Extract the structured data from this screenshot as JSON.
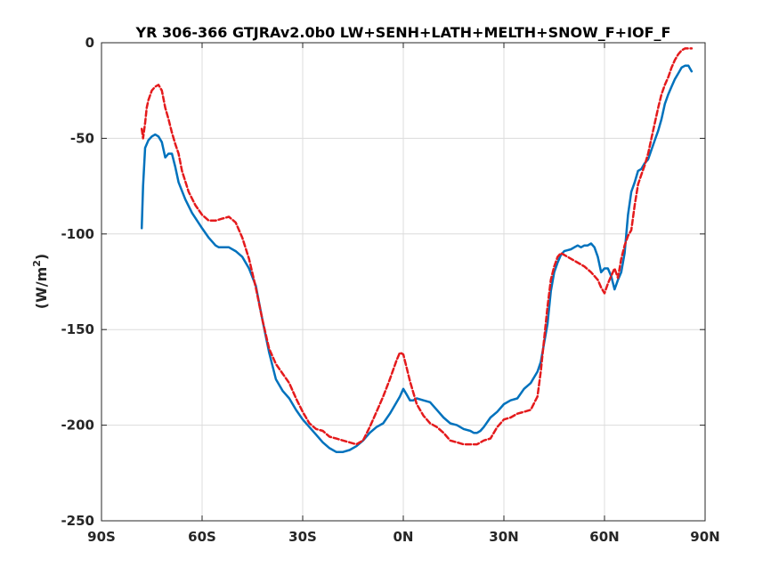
{
  "chart_data": {
    "type": "line",
    "title": "YR 306-366 GTJRAv2.0b0 LW+SENH+LATH+MELTH+SNOW_F+IOF_F",
    "xlabel": "",
    "ylabel": "(W/m",
    "ylabel_superscript": "2",
    "ylabel_close": ")",
    "xlim": [
      -90,
      90
    ],
    "ylim": [
      -250,
      0
    ],
    "x_ticks": [
      -90,
      -60,
      -30,
      0,
      30,
      60,
      90
    ],
    "x_tick_labels": [
      "90S",
      "60S",
      "30S",
      "0N",
      "30N",
      "60N",
      "90N"
    ],
    "y_ticks": [
      0,
      -50,
      -100,
      -150,
      -200,
      -250
    ],
    "y_tick_labels": [
      "0",
      "-50",
      "-100",
      "-150",
      "-200",
      "-250"
    ],
    "grid": true,
    "legend": "none",
    "series": [
      {
        "color": "#0072bd",
        "style": "solid",
        "x": [
          -78,
          -77.6,
          -77,
          -76,
          -75,
          -74,
          -73,
          -72,
          -71,
          -70,
          -69,
          -68,
          -67,
          -65,
          -63,
          -60,
          -58,
          -56,
          -55,
          -52,
          -50,
          -48,
          -46,
          -44,
          -42,
          -40,
          -38,
          -36,
          -34,
          -32,
          -30,
          -28,
          -26,
          -24,
          -22,
          -20,
          -18,
          -16,
          -14,
          -12,
          -10,
          -8,
          -6,
          -4,
          -2,
          -1,
          0,
          1,
          2,
          3,
          4,
          6,
          8,
          10,
          12,
          14,
          16,
          18,
          20,
          21,
          22,
          23,
          24,
          26,
          28,
          30,
          32,
          34,
          36,
          38,
          39,
          40,
          41,
          42,
          43,
          44,
          45,
          46,
          47,
          48,
          50,
          51,
          52,
          53,
          54,
          55,
          56,
          57,
          58,
          59,
          60,
          61,
          62,
          63,
          64,
          65,
          66,
          67,
          68,
          69,
          70,
          71,
          72,
          73,
          74,
          75,
          76,
          77,
          78,
          79,
          80,
          81,
          82,
          83,
          84,
          85,
          86
        ],
        "values": [
          -97,
          -75,
          -55,
          -51,
          -49,
          -48,
          -49,
          -52,
          -60,
          -58,
          -58,
          -65,
          -73,
          -82,
          -89,
          -97,
          -102,
          -106,
          -107,
          -107,
          -109,
          -112,
          -118,
          -127,
          -145,
          -162,
          -176,
          -182,
          -186,
          -192,
          -197,
          -201,
          -205,
          -209,
          -212,
          -214,
          -214,
          -213,
          -211,
          -208,
          -204,
          -201,
          -199,
          -194,
          -188,
          -185,
          -181,
          -184,
          -187,
          -187,
          -186,
          -187,
          -188,
          -192,
          -196,
          -199,
          -200,
          -202,
          -203,
          -204,
          -204,
          -203,
          -201,
          -196,
          -193,
          -189,
          -187,
          -186,
          -181,
          -178,
          -175,
          -172,
          -167,
          -157,
          -147,
          -130,
          -120,
          -115,
          -111,
          -109,
          -108,
          -107,
          -106,
          -107,
          -106,
          -106,
          -105,
          -107,
          -112,
          -120,
          -118,
          -118,
          -122,
          -129,
          -124,
          -120,
          -110,
          -90,
          -78,
          -73,
          -67,
          -66,
          -63,
          -61,
          -56,
          -51,
          -46,
          -40,
          -32,
          -27,
          -23,
          -19,
          -16,
          -13,
          -12,
          -12,
          -15
        ]
      },
      {
        "color": "#e41a1c",
        "style": "dashed",
        "x": [
          -78,
          -77.6,
          -77,
          -76.5,
          -76,
          -75,
          -74,
          -73,
          -72,
          -71,
          -70,
          -69,
          -68,
          -67,
          -66,
          -64,
          -62,
          -60,
          -58,
          -56,
          -54,
          -52,
          -50,
          -48,
          -46,
          -44,
          -42,
          -40,
          -38,
          -36,
          -34,
          -32,
          -30,
          -28,
          -26,
          -24,
          -22,
          -20,
          -18,
          -16,
          -14,
          -12,
          -10,
          -8,
          -6,
          -4,
          -3,
          -2,
          -1,
          0,
          1,
          2,
          3,
          4,
          6,
          8,
          10,
          12,
          14,
          16,
          18,
          20,
          22,
          24,
          26,
          28,
          30,
          32,
          34,
          36,
          38,
          40,
          41,
          42,
          43,
          44,
          45,
          46,
          47,
          48,
          50,
          52,
          54,
          56,
          58,
          59,
          60,
          61,
          62,
          63,
          64,
          65,
          66,
          67,
          68,
          69,
          70,
          71,
          72,
          73,
          74,
          75,
          76,
          77,
          78,
          79,
          80,
          81,
          82,
          83,
          84,
          85,
          86
        ],
        "values": [
          -45,
          -50,
          -42,
          -34,
          -30,
          -25,
          -23,
          -22,
          -25,
          -34,
          -40,
          -47,
          -53,
          -58,
          -67,
          -78,
          -85,
          -90,
          -93,
          -93,
          -92,
          -91,
          -94,
          -102,
          -113,
          -128,
          -145,
          -160,
          -168,
          -173,
          -178,
          -186,
          -193,
          -199,
          -202,
          -203,
          -206,
          -207,
          -208,
          -209,
          -210,
          -208,
          -201,
          -193,
          -185,
          -176,
          -171,
          -166,
          -162,
          -163,
          -170,
          -177,
          -183,
          -189,
          -195,
          -199,
          -201,
          -204,
          -208,
          -209,
          -210,
          -210,
          -210,
          -208,
          -207,
          -201,
          -197,
          -196,
          -194,
          -193,
          -192,
          -185,
          -172,
          -155,
          -138,
          -124,
          -117,
          -112,
          -110,
          -111,
          -113,
          -115,
          -117,
          -120,
          -124,
          -128,
          -131,
          -126,
          -122,
          -118,
          -123,
          -113,
          -106,
          -101,
          -98,
          -85,
          -74,
          -69,
          -64,
          -58,
          -50,
          -42,
          -34,
          -27,
          -22,
          -18,
          -13,
          -9,
          -6,
          -4,
          -3,
          -3,
          -3
        ]
      }
    ]
  }
}
